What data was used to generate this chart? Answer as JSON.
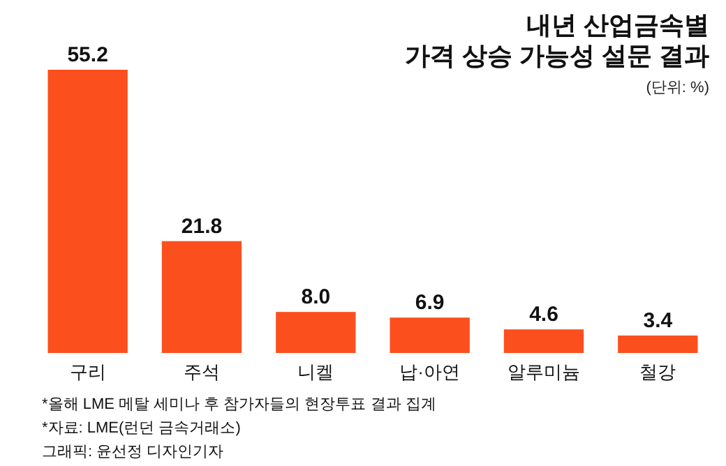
{
  "chart_data": {
    "type": "bar",
    "title": "내년 산업금속별\n가격 상승 가능성 설문 결과",
    "subtitle": "(단위: %)",
    "categories": [
      "구리",
      "주석",
      "니켈",
      "납·아연",
      "알루미늄",
      "철강"
    ],
    "values": [
      55.2,
      21.8,
      8.0,
      6.9,
      4.6,
      3.4
    ],
    "value_labels": [
      "55.2",
      "21.8",
      "8.0",
      "6.9",
      "4.6",
      "3.4"
    ],
    "color": "#fc4f1e",
    "annotations": [
      "*올해 LME 메탈 세미나 후 참가자들의 현장투표 결과 집계",
      "*자료: LME(런던 금속거래소)",
      "그래픽: 윤선정 디자인기자"
    ]
  }
}
